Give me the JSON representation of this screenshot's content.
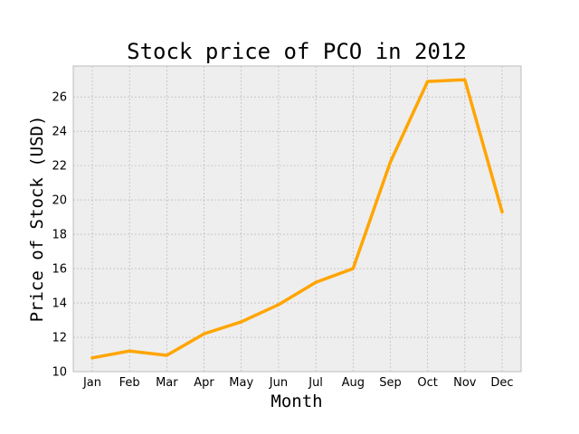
{
  "chart_data": {
    "type": "line",
    "title": "Stock price of PCO in 2012",
    "xlabel": "Month",
    "ylabel": "Price of Stock (USD)",
    "categories": [
      "Jan",
      "Feb",
      "Mar",
      "Apr",
      "May",
      "Jun",
      "Jul",
      "Aug",
      "Sep",
      "Oct",
      "Nov",
      "Dec"
    ],
    "series": [
      {
        "values": [
          10.8,
          11.2,
          10.95,
          12.2,
          12.9,
          13.9,
          15.2,
          16.0,
          22.2,
          26.9,
          27.0,
          19.3
        ],
        "color": "#ffa500"
      }
    ],
    "ylim": [
      10,
      27.8
    ],
    "yticks": [
      10,
      12,
      14,
      16,
      18,
      20,
      22,
      24,
      26
    ],
    "grid": true,
    "background": "#eeeeee",
    "grid_color": "#b0b0b0"
  }
}
